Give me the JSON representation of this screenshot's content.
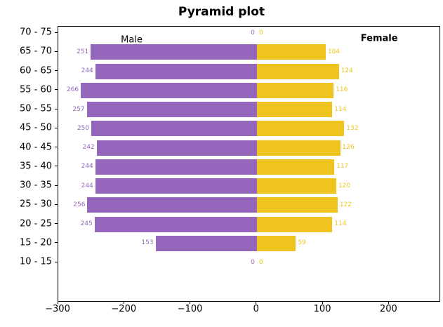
{
  "title": "Pyramid plot",
  "chart_data": {
    "type": "bar",
    "subtype": "population-pyramid",
    "title": "Pyramid plot",
    "categories": [
      "70 - 75",
      "65 - 70",
      "60 - 65",
      "55 - 60",
      "50 - 55",
      "45 - 50",
      "40 - 45",
      "35 - 40",
      "30 - 35",
      "25 - 30",
      "20 - 25",
      "15 - 20",
      "10 - 15"
    ],
    "series": [
      {
        "name": "Male",
        "side": "left",
        "color": "#9467bd",
        "values": [
          0,
          251,
          244,
          266,
          257,
          250,
          242,
          244,
          244,
          256,
          245,
          153,
          0
        ]
      },
      {
        "name": "Female",
        "side": "right",
        "color": "#f0c41e",
        "values": [
          0,
          104,
          124,
          116,
          114,
          132,
          126,
          117,
          120,
          122,
          114,
          59,
          0
        ]
      }
    ],
    "xlim": [
      -300,
      276
    ],
    "x_ticks": [
      {
        "value": -300,
        "label": "−300"
      },
      {
        "value": -200,
        "label": "−200"
      },
      {
        "value": -100,
        "label": "−100"
      },
      {
        "value": 0,
        "label": "0"
      },
      {
        "value": 100,
        "label": "100"
      },
      {
        "value": 200,
        "label": "200"
      }
    ],
    "annotations": [
      {
        "text": "Male",
        "x": -188,
        "row": 0.4,
        "bold": false,
        "color": "#000000"
      },
      {
        "text": "Female",
        "x": 186,
        "row": 0.33,
        "bold": true,
        "color": "#000000"
      }
    ],
    "grid": false,
    "bar_labels": true,
    "axis_color": "#000000",
    "background": "#ffffff"
  }
}
